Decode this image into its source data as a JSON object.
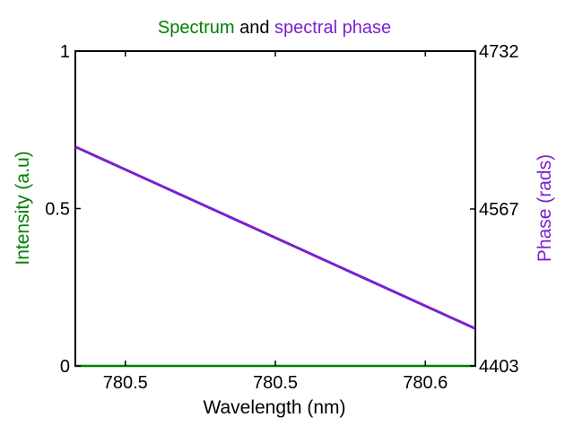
{
  "chart_data": {
    "type": "line",
    "title": {
      "part1": "Spectrum",
      "part2": " and ",
      "part3": "spectral phase"
    },
    "xlabel": "Wavelength (nm)",
    "ylabel_left": "Intensity (a.u)",
    "ylabel_right": "Phase (rads)",
    "xlim": [
      780.46,
      780.62
    ],
    "ylim_left": [
      0,
      1
    ],
    "ylim_right": [
      4403,
      4732
    ],
    "x_ticks": [
      {
        "value": 780.48,
        "label": "780.5"
      },
      {
        "value": 780.54,
        "label": "780.5"
      },
      {
        "value": 780.6,
        "label": "780.6"
      }
    ],
    "y_ticks_left": [
      {
        "value": 0,
        "label": "0"
      },
      {
        "value": 0.5,
        "label": "0.5"
      },
      {
        "value": 1,
        "label": "1"
      }
    ],
    "y_ticks_right": [
      {
        "value": 4403,
        "label": "4403"
      },
      {
        "value": 4567,
        "label": "4567"
      },
      {
        "value": 4732,
        "label": "4732"
      }
    ],
    "grid": false,
    "series": [
      {
        "axis": "left",
        "color": "#008000",
        "x": [
          780.46,
          780.62
        ],
        "y": [
          0,
          0
        ]
      },
      {
        "axis": "right",
        "color": "#7b1fd1",
        "x": [
          780.46,
          780.62
        ],
        "y": [
          4632,
          4442
        ]
      }
    ],
    "colors": {
      "spectrum": "#008000",
      "phase": "#7b1fd1",
      "text": "#000000"
    }
  }
}
